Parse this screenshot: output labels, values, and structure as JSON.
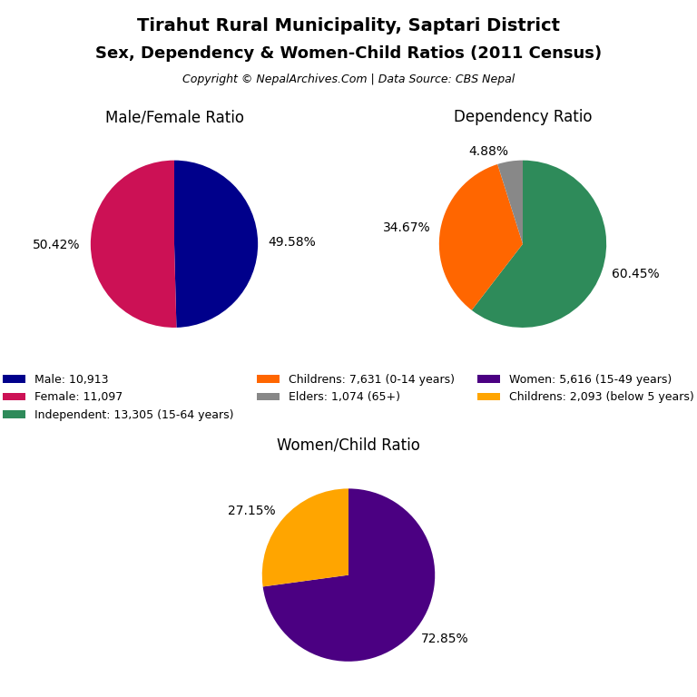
{
  "title": "Tirahut Rural Municipality, Saptari District",
  "subtitle": "Sex, Dependency & Women-Child Ratios (2011 Census)",
  "annotations": [
    "Copyright © NepalArchives.Com | Data Source: CBS Nepal"
  ],
  "legend": "center",
  "chart_data": [
    {
      "type": "pie",
      "title": "Male/Female Ratio",
      "categories": [
        "Male: 10,913",
        "Female: 11,097"
      ],
      "values": [
        49.58,
        50.42
      ],
      "value_labels": [
        "49.58%",
        "50.42%"
      ],
      "colors": [
        "#00008B",
        "#CC1155"
      ],
      "data_labels": true
    },
    {
      "type": "pie",
      "title": "Dependency Ratio",
      "categories": [
        "Independent: 13,305 (15-64 years)",
        "Childrens: 7,631 (0-14 years)",
        "Elders: 1,074 (65+)"
      ],
      "values": [
        60.45,
        34.67,
        4.88
      ],
      "value_labels": [
        "60.45%",
        "34.67%",
        "4.88%"
      ],
      "colors": [
        "#2E8B5A",
        "#FF6600",
        "#888888"
      ],
      "data_labels": true
    },
    {
      "type": "pie",
      "title": "Women/Child Ratio",
      "categories": [
        "Women: 5,616 (15-49 years)",
        "Childrens: 2,093 (below 5 years)"
      ],
      "values": [
        72.85,
        27.15
      ],
      "value_labels": [
        "72.85%",
        "27.15%"
      ],
      "colors": [
        "#4B0082",
        "#FFA500"
      ],
      "data_labels": true
    }
  ]
}
